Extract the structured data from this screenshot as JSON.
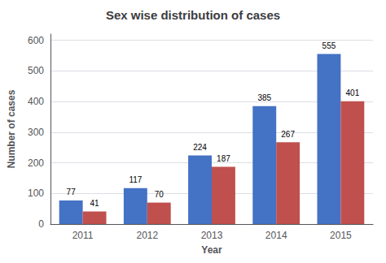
{
  "chart_data": {
    "type": "bar",
    "title": "Sex wise distribution of cases",
    "xlabel": "Year",
    "ylabel": "Number of cases",
    "categories": [
      "2011",
      "2012",
      "2013",
      "2014",
      "2015"
    ],
    "series": [
      {
        "color": "#4472C4",
        "values": [
          77,
          117,
          224,
          385,
          555
        ]
      },
      {
        "color": "#C0504D",
        "values": [
          41,
          70,
          187,
          267,
          401
        ]
      }
    ],
    "ylim": [
      0,
      620
    ],
    "yticks": [
      0,
      100,
      200,
      300,
      400,
      500,
      600
    ],
    "grid": true,
    "data_labels": true
  }
}
